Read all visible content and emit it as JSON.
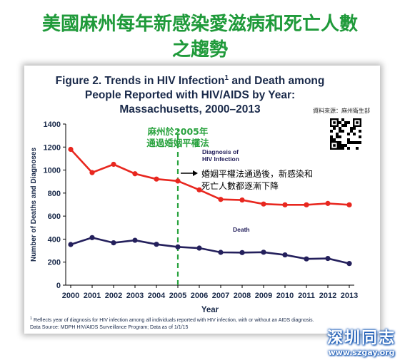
{
  "header": {
    "line1": "美國麻州每年新感染愛滋病和死亡人數",
    "line2": "之趨勢"
  },
  "figure": {
    "title_lines": [
      "Figure 2. Trends in HIV Infection",
      "People Reported with HIV/AIDS by Year:",
      "Massachusetts, 2000–2013"
    ],
    "title_sup": "1",
    "title_tail": " and Death among",
    "source_zh": "資料來源：麻州衛生部",
    "footnote_sup": "1",
    "footnote_line1": " Reflects year of diagnosis for HIV infection among all individuals reported with HIV infection, with or without an AIDS diagnosis.",
    "footnote_line2": "Data Source: MDPH HIV/AIDS Surveillance Program; Data as of 1/1/15"
  },
  "chart_data": {
    "type": "line",
    "x": [
      2000,
      2001,
      2002,
      2003,
      2004,
      2005,
      2006,
      2007,
      2008,
      2009,
      2010,
      2011,
      2012,
      2013
    ],
    "xlabel": "Year",
    "ylabel": "Number of Deaths and Diagnoses",
    "ylim": [
      0,
      1400
    ],
    "yticks": [
      0,
      200,
      400,
      600,
      800,
      1000,
      1200,
      1400
    ],
    "series": [
      {
        "name": "Diagnosis of HIV Infection",
        "label_lines": [
          "Diagnosis of",
          "HIV Infection"
        ],
        "color": "#e8271f",
        "values": [
          1180,
          978,
          1050,
          968,
          922,
          905,
          828,
          745,
          740,
          705,
          698,
          698,
          710,
          698
        ]
      },
      {
        "name": "Death",
        "label_lines": [
          "Death"
        ],
        "color": "#24205c",
        "values": [
          353,
          413,
          368,
          390,
          355,
          332,
          322,
          285,
          283,
          286,
          263,
          228,
          232,
          188
        ]
      }
    ],
    "annotations": {
      "policy_year": 2005,
      "policy_lines": [
        "麻州於2005年",
        "通過婚姻平權法"
      ],
      "policy_color": "#2aa33f",
      "note_lines": [
        "婚姻平權法通過後，新感染和",
        "死亡人數都逐漸下降"
      ]
    },
    "grid": false
  },
  "watermark": {
    "main": "深圳同志",
    "url": "www.szgay.org"
  }
}
